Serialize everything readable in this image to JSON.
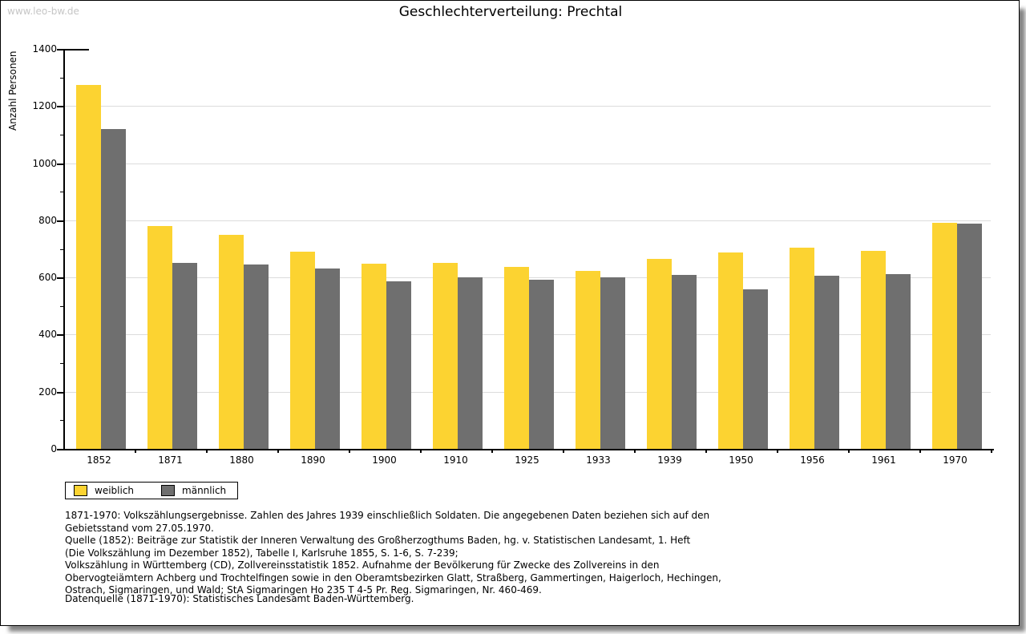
{
  "watermark": "www.leo-bw.de",
  "title": "Geschlechterverteilung: Prechtal",
  "chart_data": {
    "type": "bar",
    "title": "Geschlechterverteilung: Prechtal",
    "xlabel": "",
    "ylabel": "Anzahl Personen",
    "ylim": [
      0,
      1400
    ],
    "ytick_step": 200,
    "yminor_step": 100,
    "grid": true,
    "legend_position": "bottom-left",
    "categories": [
      "1852",
      "1871",
      "1880",
      "1890",
      "1900",
      "1910",
      "1925",
      "1933",
      "1939",
      "1950",
      "1956",
      "1961",
      "1970"
    ],
    "series": [
      {
        "name": "weiblich",
        "color": "#FCD331",
        "values": [
          1275,
          781,
          750,
          690,
          648,
          651,
          637,
          622,
          665,
          688,
          704,
          693,
          790
        ]
      },
      {
        "name": "männlich",
        "color": "#6F6F6F",
        "values": [
          1119,
          650,
          646,
          631,
          587,
          600,
          591,
          600,
          608,
          559,
          606,
          613,
          789
        ]
      }
    ]
  },
  "footnotes": {
    "lines": [
      "1871-1970: Volkszählungsergebnisse. Zahlen des Jahres 1939 einschließlich Soldaten. Die angegebenen Daten beziehen sich auf den",
      "Gebietsstand vom 27.05.1970.",
      "Quelle (1852): Beiträge zur Statistik der Inneren Verwaltung des Großherzogthums Baden, hg. v. Statistischen Landesamt, 1. Heft",
      "(Die Volkszählung im Dezember 1852), Tabelle I, Karlsruhe 1855, S. 1-6, S. 7-239;",
      "Volkszählung in Württemberg (CD), Zollvereinsstatistik 1852. Aufnahme der Bevölkerung für Zwecke des Zollvereins in den",
      "Obervogteiämtern Achberg und Trochtelfingen sowie in den Oberamtsbezirken Glatt, Straßberg, Gammertingen, Haigerloch, Hechingen,",
      "Ostrach, Sigmaringen, und Wald; StA Sigmaringen Ho 235 T 4-5 Pr. Reg. Sigmaringen, Nr. 460-469."
    ],
    "datasource": "Datenquelle (1871-1970): Statistisches Landesamt Baden-Württemberg."
  }
}
